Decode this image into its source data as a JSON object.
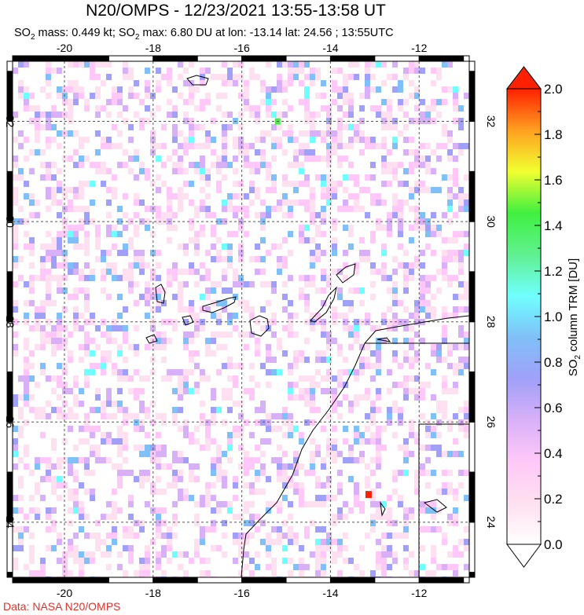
{
  "title": "N20/OMPS - 12/23/2021 13:55-13:58 UT",
  "subtitle": {
    "p1": "SO",
    "sub1": "2",
    "p2": " mass: 0.449 kt; SO",
    "sub2": "2",
    "p3": " max: 6.80 DU at lon: -13.14 lat: 24.56 ; 13:55UTC"
  },
  "credit": "Data: NASA N20/OMPS",
  "map": {
    "lon_range": [
      -21.17,
      -10.87
    ],
    "lat_range": [
      22.9,
      33.2
    ],
    "lon_ticks": [
      "-20",
      "-18",
      "-16",
      "-14",
      "-12"
    ],
    "lon_tick_values": [
      -20,
      -18,
      -16,
      -14,
      -12
    ],
    "lat_ticks": [
      "24",
      "26",
      "28",
      "30",
      "32"
    ],
    "lat_tick_values": [
      24,
      26,
      28,
      30,
      32
    ],
    "grid": "dashed",
    "max_point": {
      "lon": -13.14,
      "lat": 24.56,
      "value": 6.8
    }
  },
  "colorbar": {
    "label_p1": "SO",
    "label_sub": "2",
    "label_p2": " column TRM [DU]",
    "range": [
      0.0,
      2.0
    ],
    "ticks": [
      "0.0",
      "0.2",
      "0.4",
      "0.6",
      "0.8",
      "1.0",
      "1.2",
      "1.4",
      "1.6",
      "1.8",
      "2.0"
    ],
    "colors": [
      "#ffffff",
      "#ffe0f0",
      "#ffc8f8",
      "#d8b0f8",
      "#a0a0f8",
      "#80c0f8",
      "#70ffff",
      "#60f090",
      "#40f040",
      "#f0ff30",
      "#ffa020",
      "#ff2000"
    ]
  }
}
